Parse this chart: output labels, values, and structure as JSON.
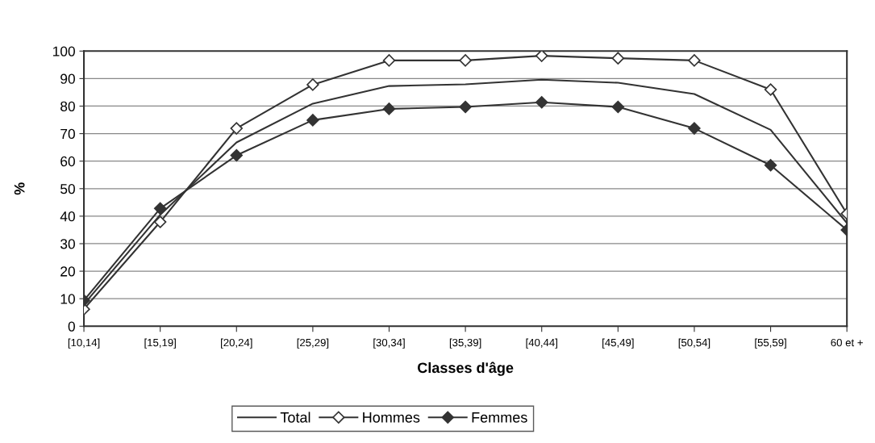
{
  "chart_data": {
    "type": "line",
    "xlabel": "Classes d'âge",
    "ylabel": "%",
    "categories": [
      "[10,14]",
      "[15,19]",
      "[20,24]",
      "[25,29]",
      "[30,34]",
      "[35,39]",
      "[40,44]",
      "[45,49]",
      "[50,54]",
      "[55,59]",
      "60 et +"
    ],
    "series": [
      {
        "name": "Total",
        "color": "#333333",
        "marker": "none",
        "values": [
          8,
          40.5,
          66.8,
          80.9,
          87.3,
          87.9,
          89.6,
          88.5,
          84.4,
          71.4,
          37.5
        ]
      },
      {
        "name": "Hommes",
        "color": "#333333",
        "marker": "diamond",
        "values": [
          6.2,
          37.9,
          71.9,
          87.8,
          96.6,
          96.6,
          98.3,
          97.4,
          96.6,
          86.0,
          40.9
        ]
      },
      {
        "name": "Femmes",
        "color": "#333333",
        "marker": "diamond",
        "values": [
          9.4,
          42.8,
          62.1,
          74.9,
          79.0,
          79.7,
          81.4,
          79.7,
          71.9,
          58.5,
          35.0
        ]
      }
    ],
    "ylim": [
      0,
      100
    ],
    "yticks": [
      0,
      10,
      20,
      30,
      40,
      50,
      60,
      70,
      80,
      90,
      100
    ],
    "grid": "y",
    "legend": "bottom",
    "line_style": "solid"
  }
}
